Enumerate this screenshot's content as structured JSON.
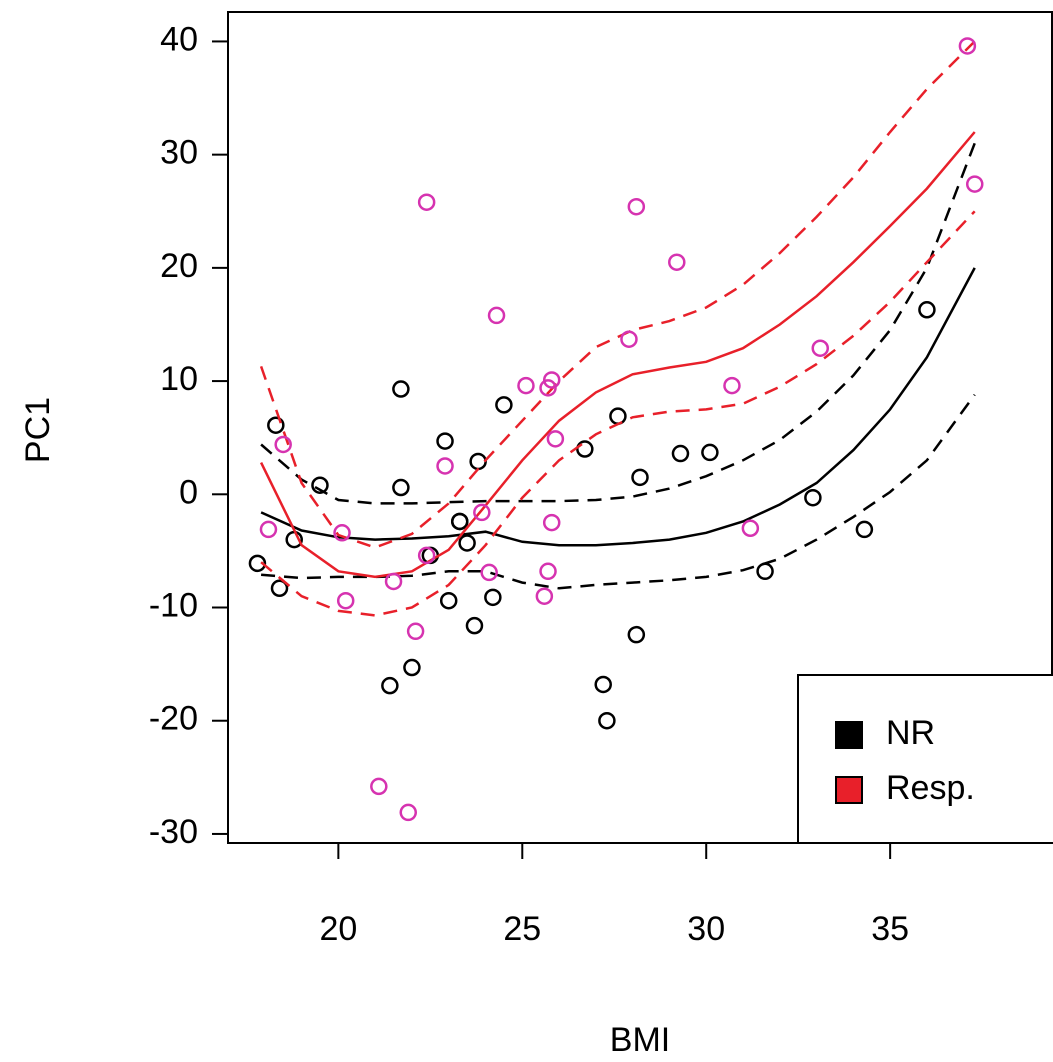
{
  "chart_data": {
    "type": "scatter",
    "x_label": "BMI",
    "y_label": "PC1",
    "xlim": [
      17,
      39.4
    ],
    "ylim": [
      -30.8,
      42.6
    ],
    "xticks": [
      20,
      25,
      30,
      35
    ],
    "yticks": [
      -30,
      -20,
      -10,
      0,
      10,
      20,
      30,
      40
    ],
    "legend_position": "bottom-right",
    "series": [
      {
        "name": "NR",
        "color": "#000000",
        "point_color": "#000000",
        "x": [
          17.8,
          18.3,
          18.4,
          18.8,
          19.5,
          21.7,
          21.7,
          21.4,
          22.0,
          22.5,
          22.9,
          23.0,
          23.3,
          23.3,
          23.5,
          23.8,
          23.7,
          24.2,
          24.5,
          26.7,
          27.2,
          27.3,
          27.6,
          28.2,
          28.1,
          29.3,
          30.1,
          31.6,
          32.9,
          34.3,
          36.0
        ],
        "values": [
          -6.1,
          6.1,
          -8.3,
          -4.0,
          0.8,
          0.6,
          9.3,
          -16.9,
          -15.3,
          -5.4,
          4.7,
          -9.4,
          -2.4,
          -2.4,
          -4.3,
          2.9,
          -11.6,
          -9.1,
          7.9,
          4.0,
          -16.8,
          -20.0,
          6.9,
          1.5,
          -12.4,
          3.6,
          3.7,
          -6.8,
          -0.3,
          -3.1,
          16.3
        ],
        "fit": {
          "x": [
            17.9,
            19,
            20,
            21,
            22,
            23,
            24,
            25,
            26,
            27,
            28,
            29,
            30,
            31,
            32,
            33,
            34,
            35,
            36,
            37.3
          ],
          "y": [
            -1.6,
            -3.2,
            -3.8,
            -4.0,
            -3.9,
            -3.7,
            -3.3,
            -4.2,
            -4.5,
            -4.5,
            -4.3,
            -4.0,
            -3.4,
            -2.4,
            -0.9,
            1.0,
            3.9,
            7.5,
            12.1,
            20.0
          ],
          "upper": [
            4.4,
            1.3,
            -0.5,
            -0.8,
            -0.8,
            -0.7,
            -0.6,
            -0.6,
            -0.6,
            -0.5,
            -0.2,
            0.5,
            1.6,
            3.0,
            4.8,
            7.3,
            10.5,
            14.5,
            20.0,
            31.0
          ],
          "lower": [
            -7.1,
            -7.4,
            -7.3,
            -7.3,
            -7.2,
            -6.8,
            -6.8,
            -7.8,
            -8.3,
            -8.0,
            -7.8,
            -7.6,
            -7.3,
            -6.7,
            -5.7,
            -4.0,
            -2.0,
            0.2,
            3.0,
            8.8
          ]
        }
      },
      {
        "name": "Resp.",
        "color": "#e8202a",
        "point_color": "#d633b0",
        "x": [
          18.1,
          18.5,
          20.1,
          20.2,
          21.1,
          21.5,
          21.9,
          22.1,
          22.4,
          22.4,
          22.9,
          23.9,
          24.1,
          24.3,
          25.1,
          25.7,
          25.8,
          25.9,
          25.8,
          25.7,
          25.6,
          28.1,
          27.9,
          29.2,
          30.7,
          31.2,
          33.1,
          37.1,
          37.3
        ],
        "values": [
          -3.1,
          4.4,
          -3.4,
          -9.4,
          -25.8,
          -7.7,
          -28.1,
          -12.1,
          -5.4,
          25.8,
          2.5,
          -1.6,
          -6.9,
          15.8,
          9.6,
          9.4,
          10.1,
          4.9,
          -2.5,
          -6.8,
          -9.0,
          25.4,
          13.7,
          20.5,
          9.6,
          -3.0,
          12.9,
          39.6,
          27.4
        ],
        "fit": {
          "x": [
            17.9,
            19,
            20,
            21,
            22,
            23,
            24,
            25,
            26,
            27,
            28,
            29,
            30,
            31,
            32,
            33,
            34,
            35,
            36,
            37.3
          ],
          "y": [
            2.8,
            -4.5,
            -6.8,
            -7.3,
            -6.8,
            -4.9,
            -1.0,
            3.0,
            6.5,
            9.0,
            10.6,
            11.2,
            11.7,
            12.9,
            15.0,
            17.5,
            20.5,
            23.7,
            27.0,
            32.0
          ],
          "upper": [
            11.3,
            1.0,
            -3.6,
            -4.7,
            -3.5,
            -0.8,
            3.0,
            6.5,
            10.0,
            13.0,
            14.5,
            15.3,
            16.5,
            18.5,
            21.3,
            24.5,
            28.0,
            32.0,
            35.8,
            40.0
          ],
          "lower": [
            -6.0,
            -9.0,
            -10.3,
            -10.7,
            -10.0,
            -8.0,
            -4.5,
            -0.3,
            3.0,
            5.3,
            6.8,
            7.3,
            7.5,
            8.0,
            9.5,
            11.5,
            14.0,
            17.0,
            20.5,
            25.0
          ]
        }
      }
    ]
  }
}
